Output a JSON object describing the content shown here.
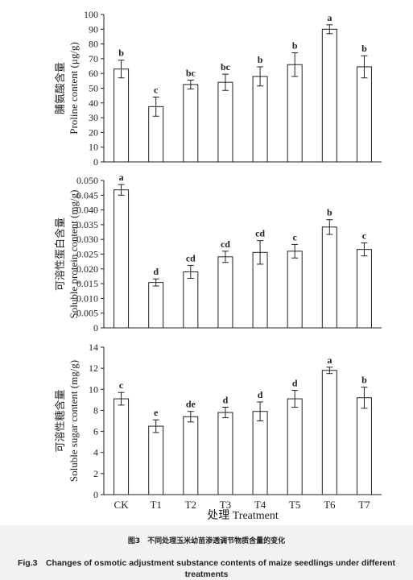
{
  "chart_data": [
    {
      "type": "bar",
      "categories": [
        "CK",
        "T1",
        "T2",
        "T3",
        "T4",
        "T5",
        "T6",
        "T7"
      ],
      "values": [
        63,
        37.5,
        52.5,
        54,
        58,
        66,
        90,
        64.5
      ],
      "errors": [
        6,
        6.5,
        3,
        5.5,
        6.5,
        8,
        3,
        7.5
      ],
      "significance": [
        "b",
        "c",
        "bc",
        "bc",
        "b",
        "b",
        "a",
        "b"
      ],
      "ylabel_cn": "脯氨酸含量",
      "ylabel_en": "Proline content (μg/g)",
      "ylim": [
        0,
        100
      ],
      "yticks": [
        0,
        10,
        20,
        30,
        40,
        50,
        60,
        70,
        80,
        90,
        100
      ],
      "ytick_labels": [
        "0",
        "10",
        "20",
        "30",
        "40",
        "50",
        "60",
        "70",
        "80",
        "90",
        "100"
      ]
    },
    {
      "type": "bar",
      "categories": [
        "CK",
        "T1",
        "T2",
        "T3",
        "T4",
        "T5",
        "T6",
        "T7"
      ],
      "values": [
        0.0468,
        0.0154,
        0.019,
        0.0241,
        0.0256,
        0.026,
        0.0342,
        0.0266
      ],
      "errors": [
        0.0018,
        0.0012,
        0.0022,
        0.0019,
        0.004,
        0.0023,
        0.0025,
        0.0022
      ],
      "significance": [
        "a",
        "d",
        "cd",
        "cd",
        "cd",
        "c",
        "b",
        "c"
      ],
      "ylabel_cn": "可溶性蛋白含量",
      "ylabel_en": "Soluble protein content (mg/g)",
      "ylim": [
        0,
        0.05
      ],
      "yticks": [
        0,
        0.005,
        0.01,
        0.015,
        0.02,
        0.025,
        0.03,
        0.035,
        0.04,
        0.045,
        0.05
      ],
      "ytick_labels": [
        "0",
        "0.005",
        "0.010",
        "0.015",
        "0.020",
        "0.025",
        "0.030",
        "0.035",
        "0.040",
        "0.045",
        "0.050"
      ]
    },
    {
      "type": "bar",
      "categories": [
        "CK",
        "T1",
        "T2",
        "T3",
        "T4",
        "T5",
        "T6",
        "T7"
      ],
      "values": [
        9.1,
        6.5,
        7.4,
        7.8,
        7.9,
        9.1,
        11.8,
        9.2
      ],
      "errors": [
        0.6,
        0.6,
        0.5,
        0.5,
        0.9,
        0.8,
        0.3,
        1.0
      ],
      "significance": [
        "c",
        "e",
        "de",
        "d",
        "d",
        "d",
        "a",
        "b"
      ],
      "ylabel_cn": "可溶性糖含量",
      "ylabel_en": "Soluble sugar content (mg/g)",
      "ylim": [
        0,
        14
      ],
      "yticks": [
        0,
        2,
        4,
        6,
        8,
        10,
        12,
        14
      ],
      "ytick_labels": [
        "0",
        "2",
        "4",
        "6",
        "8",
        "10",
        "12",
        "14"
      ]
    }
  ],
  "xlabel": "处理 Treatment",
  "caption": {
    "cn": "图3　不同处理玉米幼苗渗透调节物质含量的变化",
    "en": "Fig.3　Changes of osmotic adjustment substance contents of maize seedlings under different treatments"
  }
}
